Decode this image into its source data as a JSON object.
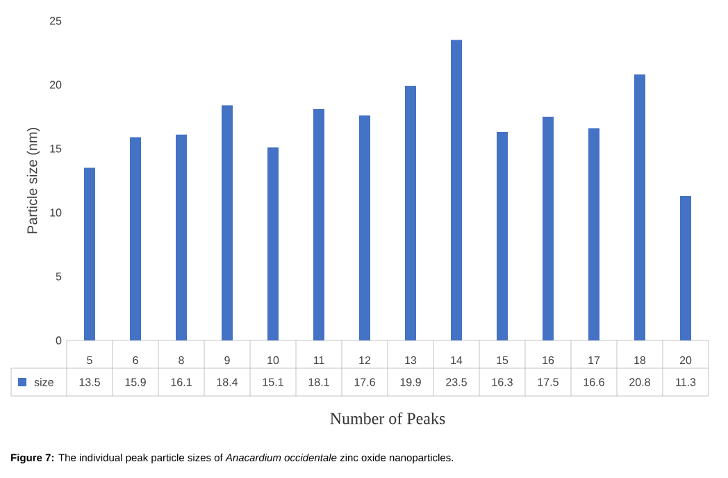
{
  "chart_data": {
    "type": "bar",
    "xlabel": "Number of Peaks",
    "ylabel": "Particle size (nm)",
    "categories": [
      "5",
      "6",
      "8",
      "9",
      "10",
      "11",
      "12",
      "13",
      "14",
      "15",
      "16",
      "17",
      "18",
      "20"
    ],
    "series": [
      {
        "name": "size",
        "color": "#4472c4",
        "values": [
          13.5,
          15.9,
          16.1,
          18.4,
          15.1,
          18.1,
          17.6,
          19.9,
          23.5,
          16.3,
          17.5,
          16.6,
          20.8,
          11.3
        ]
      }
    ],
    "ylim": [
      0,
      25
    ],
    "yticks": [
      0,
      5,
      10,
      15,
      20,
      25
    ],
    "data_labels": true,
    "legend": "bottom",
    "annotations": [
      "**Figure 7:** The individual peak particle sizes of *Anacardium occidentale* zinc oxide nanoparticles."
    ]
  }
}
